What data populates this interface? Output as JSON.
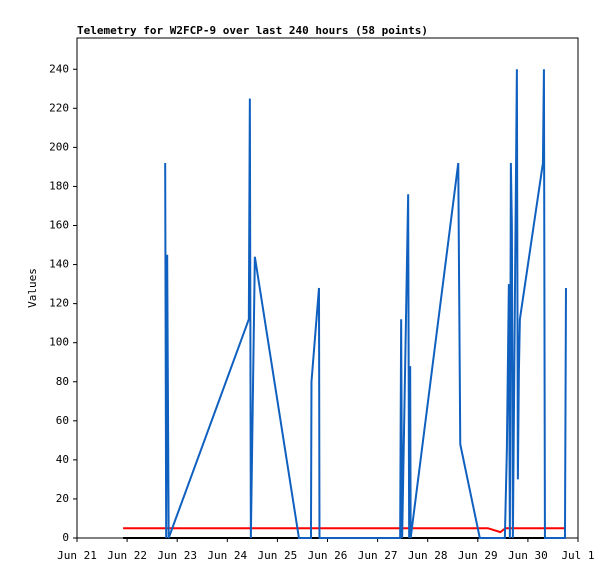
{
  "chart_data": {
    "type": "line",
    "title": "Telemetry for W2FCP-9 over last 240 hours (58 points)",
    "ylabel": "Values",
    "xlim": [
      0,
      10
    ],
    "xticks": [
      {
        "value": 0,
        "label": "Jun 21"
      },
      {
        "value": 1,
        "label": "Jun 22"
      },
      {
        "value": 2,
        "label": "Jun 23"
      },
      {
        "value": 3,
        "label": "Jun 24"
      },
      {
        "value": 4,
        "label": "Jun 25"
      },
      {
        "value": 5,
        "label": "Jun 26"
      },
      {
        "value": 6,
        "label": "Jun 27"
      },
      {
        "value": 7,
        "label": "Jun 28"
      },
      {
        "value": 8,
        "label": "Jun 29"
      },
      {
        "value": 9,
        "label": "Jun 30"
      },
      {
        "value": 10,
        "label": "Jul 1"
      }
    ],
    "ylim": [
      0,
      256
    ],
    "yticks": [
      0,
      20,
      40,
      60,
      80,
      100,
      120,
      140,
      160,
      180,
      200,
      220,
      240
    ],
    "series": [
      {
        "color": "#000000",
        "x": [
          0.92,
          9.76
        ],
        "values": [
          0,
          0
        ]
      },
      {
        "color": "#ff0000",
        "x": [
          0.92,
          8.2,
          8.45,
          8.55,
          9.76
        ],
        "values": [
          5,
          5,
          3,
          5,
          5
        ]
      },
      {
        "color": "#1060c0",
        "x": [
          1.76,
          1.78,
          1.8,
          1.82,
          1.83,
          3.43,
          3.45,
          3.47,
          3.55,
          4.43,
          4.67,
          4.68,
          4.83,
          4.84,
          6.45,
          6.47,
          6.49,
          6.61,
          6.63,
          6.65,
          6.66,
          7.61,
          7.63,
          7.65,
          8.04,
          8.54,
          8.58,
          8.62,
          8.64,
          8.66,
          8.68,
          8.7,
          8.78,
          8.8,
          8.82,
          8.84,
          9.3,
          9.32,
          9.34,
          9.74,
          9.76
        ],
        "values": [
          192,
          0,
          145,
          48,
          0,
          112,
          225,
          0,
          144,
          0,
          0,
          80,
          128,
          0,
          0,
          112,
          0,
          176,
          0,
          88,
          0,
          192,
          120,
          48,
          0,
          0,
          45,
          130,
          0,
          192,
          160,
          0,
          240,
          30,
          85,
          112,
          192,
          240,
          0,
          0,
          128
        ]
      }
    ]
  }
}
